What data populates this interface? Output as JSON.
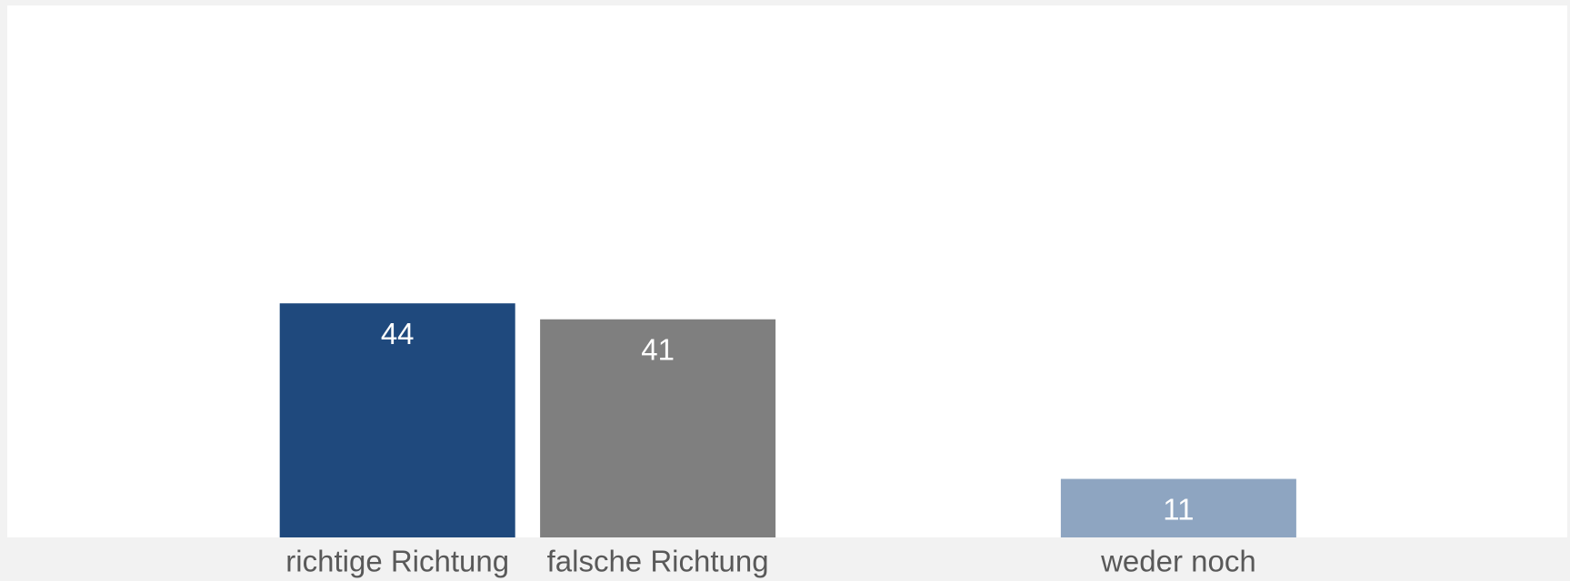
{
  "chart_data": {
    "type": "bar",
    "categories": [
      "richtige Richtung",
      "falsche Richtung",
      null,
      "weder noch"
    ],
    "values": [
      44,
      41,
      null,
      11
    ],
    "colors": [
      "#1f497d",
      "#7f7f7f",
      null,
      "#8ea5c1"
    ],
    "ylim": [
      0,
      100
    ]
  }
}
